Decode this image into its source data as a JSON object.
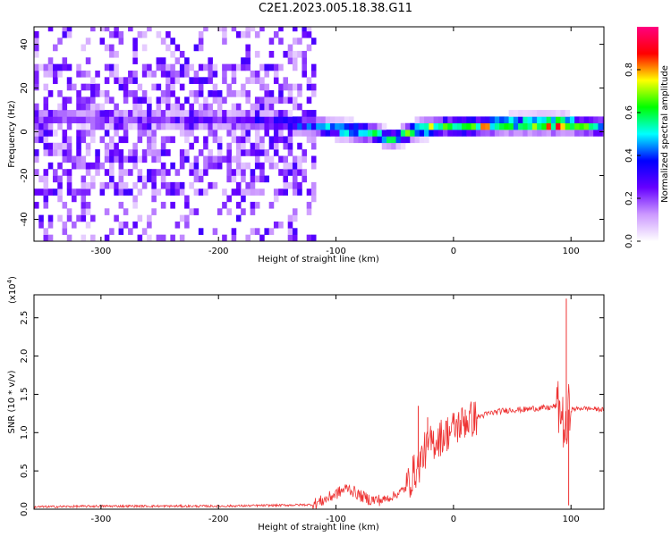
{
  "title": "C2E1.2023.005.18.38.G11",
  "chart_data": [
    {
      "type": "heatmap",
      "title": "",
      "xlabel": "Height of straight line (km)",
      "ylabel": "Frequency (Hz)",
      "xlim": [
        -357,
        128
      ],
      "ylim": [
        -50,
        48
      ],
      "xticks": [
        -300,
        -200,
        -100,
        0,
        100
      ],
      "yticks": [
        -40,
        -20,
        0,
        20,
        40
      ],
      "colorbar": {
        "label": "Normalized spectral amplitude",
        "range": [
          0.0,
          1.0
        ],
        "ticks": [
          0.0,
          0.2,
          0.4,
          0.6,
          0.8
        ],
        "colors": [
          "#ffffff",
          "#cc99ff",
          "#6600ff",
          "#0000ff",
          "#00ffff",
          "#00ff00",
          "#ffff00",
          "#ff0000",
          "#ff0080"
        ]
      },
      "ridge": {
        "x": [
          -340,
          -300,
          -250,
          -200,
          -150,
          -120,
          -90,
          -70,
          -55,
          -45,
          -30,
          -10,
          10,
          50,
          85,
          95,
          110,
          128
        ],
        "freq": [
          5,
          5,
          4,
          4,
          3,
          1,
          -1,
          -2,
          -5,
          -3,
          0,
          1,
          1,
          2,
          2,
          2,
          1,
          1
        ],
        "amplitude": [
          0.22,
          0.2,
          0.22,
          0.25,
          0.35,
          0.45,
          0.55,
          0.6,
          0.5,
          0.55,
          0.65,
          0.7,
          0.75,
          0.65,
          0.85,
          0.75,
          0.6,
          0.55
        ]
      },
      "noise_region": {
        "x_range": [
          -357,
          -120
        ],
        "freq_range": [
          -50,
          48
        ],
        "amplitude": 0.15
      }
    },
    {
      "type": "line",
      "title": "",
      "xlabel": "Height of straight line (km)",
      "ylabel": "SNR (10 * v/v)",
      "y_exponent_label": "(x10",
      "y_exponent": "4",
      "y_exponent_close": ")",
      "xlim": [
        -357,
        128
      ],
      "ylim": [
        0.0,
        2.8
      ],
      "xticks": [
        -300,
        -200,
        -100,
        0,
        100
      ],
      "yticks": [
        0.0,
        0.5,
        1.0,
        1.5,
        2.0,
        2.5
      ],
      "color": "#ee3333",
      "series": [
        {
          "x": [
            -357,
            -300,
            -250,
            -200,
            -150,
            -120,
            -110,
            -100,
            -90,
            -80,
            -70,
            -60,
            -50,
            -40,
            -35,
            -30,
            -25,
            -20,
            -15,
            -10,
            -5,
            0,
            10,
            20,
            30,
            40,
            50,
            60,
            70,
            80,
            88,
            92,
            96,
            98,
            100,
            110,
            128
          ],
          "y": [
            0.03,
            0.04,
            0.04,
            0.04,
            0.05,
            0.06,
            0.12,
            0.2,
            0.28,
            0.18,
            0.12,
            0.12,
            0.18,
            0.28,
            0.45,
            0.55,
            0.75,
            0.85,
            0.9,
            0.95,
            1.0,
            1.05,
            1.15,
            1.2,
            1.25,
            1.28,
            1.3,
            1.3,
            1.32,
            1.32,
            1.35,
            1.25,
            0.9,
            1.3,
            1.3,
            1.32,
            1.3
          ],
          "spikes": [
            {
              "x": -30,
              "y": 1.35
            },
            {
              "x": -22,
              "y": 1.2
            },
            {
              "x": 10,
              "y": 1.3
            },
            {
              "x": 96,
              "y": 2.75
            },
            {
              "x": 98,
              "y": 0.05
            }
          ]
        }
      ]
    }
  ]
}
